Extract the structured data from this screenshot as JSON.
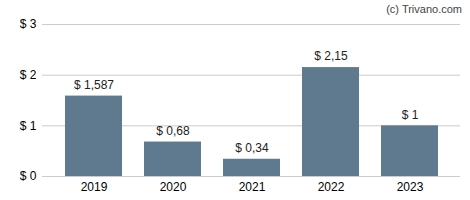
{
  "chart_data": {
    "type": "bar",
    "annotations": [
      "(c) Trivano.com"
    ],
    "categories": [
      "2019",
      "2020",
      "2021",
      "2022",
      "2023"
    ],
    "values": [
      1.587,
      0.68,
      0.34,
      2.15,
      1
    ],
    "value_labels": [
      "$ 1,587",
      "$ 0,68",
      "$ 0,34",
      "$ 2,15",
      "$ 1"
    ],
    "data_labels": true,
    "color": "#5f7a8e",
    "ylim": [
      0,
      3
    ],
    "yticks": [
      {
        "value": 0,
        "label": "$ 0"
      },
      {
        "value": 1,
        "label": "$ 1"
      },
      {
        "value": 2,
        "label": "$ 2"
      },
      {
        "value": 3,
        "label": "$ 3"
      }
    ],
    "grid": true
  }
}
